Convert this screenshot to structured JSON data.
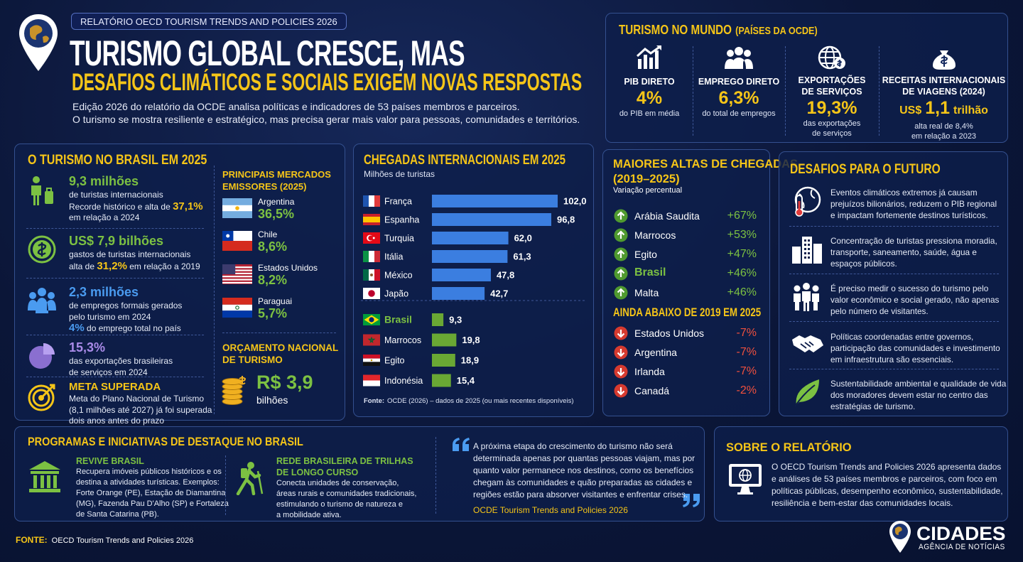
{
  "header": {
    "badge": "RELATÓRIO OECD TOURISM TRENDS AND POLICIES 2026",
    "title": "TURISMO GLOBAL CRESCE, MAS",
    "subtitle": "DESAFIOS CLIMÁTICOS E SOCIAIS EXIGEM NOVAS RESPOSTAS",
    "intro": [
      "Edição 2026 do relatório da OCDE analisa políticas e indicadores de 53 países membros e parceiros.",
      "O turismo se mostra resiliente e estratégico, mas precisa gerar mais valor para pessoas, comunidades e territórios."
    ]
  },
  "world": {
    "title": "TURISMO NO MUNDO",
    "title_note": "(PAÍSES DA OCDE)",
    "items": [
      {
        "label": [
          "PIB DIRETO"
        ],
        "value": "4%",
        "note": [
          "do PIB em média"
        ]
      },
      {
        "label": [
          "EMPREGO DIRETO"
        ],
        "value": "6,3%",
        "note": [
          "do total de empregos"
        ]
      },
      {
        "label": [
          "EXPORTAÇÕES",
          "DE SERVIÇOS"
        ],
        "value": "19,3%",
        "note": [
          "das exportações",
          "de serviços"
        ]
      },
      {
        "label": [
          "RECEITAS INTERNACIONAIS",
          "DE VIAGENS (2024)"
        ],
        "prefix": "US$",
        "value": "1,1",
        "suffix": "trilhão",
        "note": [
          "alta real de 8,4%",
          "em relação a 2023"
        ]
      }
    ]
  },
  "brazil": {
    "title": "O TURISMO NO BRASIL EM 2025",
    "items": [
      {
        "value": "9,3 milhões",
        "accent": "#7cc142",
        "em_color": "#f5c518",
        "lines": [
          [
            "de turistas internacionais"
          ],
          [
            "Recorde histórico e alta de ",
            {
              "em": "37,1%"
            }
          ],
          [
            "em relação a 2024"
          ]
        ]
      },
      {
        "value": "US$ 7,9 bilhões",
        "accent": "#7cc142",
        "em_color": "#f5c518",
        "lines": [
          [
            "gastos de turistas internacionais"
          ],
          [
            "alta de ",
            {
              "em": "31,2%"
            },
            " em relação a 2019"
          ]
        ]
      },
      {
        "value": "2,3 milhões",
        "accent": "#4a9bf0",
        "em_color": "#4a9bf0",
        "lines": [
          [
            "de empregos formais gerados"
          ],
          [
            "pelo turismo em 2024"
          ],
          [
            {
              "em": "4%"
            },
            " do emprego total no país"
          ]
        ]
      },
      {
        "value": "15,3%",
        "accent": "#a98be8",
        "lines": [
          [
            "das exportações brasileiras"
          ],
          [
            "de serviços em 2024"
          ]
        ]
      },
      {
        "value": "META SUPERADA",
        "accent": "#f5c518",
        "lines": [
          [
            "Meta do Plano Nacional de Turismo"
          ],
          [
            "(8,1 milhões até 2027) já foi superada"
          ],
          [
            "dois anos antes do prazo"
          ]
        ]
      }
    ],
    "markets": {
      "title": [
        "PRINCIPAIS MERCADOS",
        "EMISSORES (2025)"
      ],
      "items": [
        {
          "name": "Argentina",
          "share": "36,5%"
        },
        {
          "name": "Chile",
          "share": "8,6%"
        },
        {
          "name": "Estados Unidos",
          "share": "8,2%"
        },
        {
          "name": "Paraguai",
          "share": "5,7%"
        }
      ]
    },
    "budget": {
      "title": [
        "ORÇAMENTO NACIONAL",
        "DE TURISMO"
      ],
      "value": "R$ 3,9",
      "unit": "bilhões"
    }
  },
  "chart_data": {
    "type": "bar",
    "title": "CHEGADAS INTERNACIONAIS EM 2025",
    "subtitle": "Milhões de turistas",
    "categories": [
      "França",
      "Espanha",
      "Turquia",
      "Itália",
      "México",
      "Japão",
      "Brasil",
      "Marrocos",
      "Egito",
      "Indonésia"
    ],
    "values": [
      102.0,
      96.8,
      62.0,
      61.3,
      47.8,
      42.7,
      9.3,
      19.8,
      18.9,
      15.4
    ],
    "value_labels": [
      "102,0",
      "96,8",
      "62,0",
      "61,3",
      "47,8",
      "42,7",
      "9,3",
      "19,8",
      "18,9",
      "15,4"
    ],
    "colors": [
      "#3b7ee0",
      "#3b7ee0",
      "#3b7ee0",
      "#3b7ee0",
      "#3b7ee0",
      "#3b7ee0",
      "#6aa834",
      "#6aa834",
      "#6aa834",
      "#6aa834"
    ],
    "source_label": "Fonte:",
    "source": "OCDE (2026) – dados de 2025 (ou mais recentes disponíveis)"
  },
  "arrivals_change": {
    "up": {
      "title": [
        "MAIORES ALTAS DE CHEGADAS",
        "(2019–2025)"
      ],
      "subtitle": "Variação percentual",
      "items": [
        {
          "name": "Arábia Saudita",
          "change": "+67%"
        },
        {
          "name": "Marrocos",
          "change": "+53%"
        },
        {
          "name": "Egito",
          "change": "+47%"
        },
        {
          "name": "Brasil",
          "change": "+46%"
        },
        {
          "name": "Malta",
          "change": "+46%"
        }
      ]
    },
    "down": {
      "title": "AINDA ABAIXO DE 2019 EM 2025",
      "items": [
        {
          "name": "Estados Unidos",
          "change": "-7%"
        },
        {
          "name": "Argentina",
          "change": "-7%"
        },
        {
          "name": "Irlanda",
          "change": "-7%"
        },
        {
          "name": "Canadá",
          "change": "-2%"
        }
      ]
    }
  },
  "challenges": {
    "title": "DESAFIOS PARA O FUTURO",
    "items": [
      [
        "Eventos climáticos extremos já causam",
        "prejuízos bilionários, reduzem o PIB regional",
        "e impactam fortemente destinos turísticos."
      ],
      [
        "Concentração de turistas pressiona moradia,",
        "transporte, saneamento, saúde, água e",
        "espaços públicos."
      ],
      [
        "É preciso medir o sucesso do turismo pelo",
        "valor econômico e social gerado, não apenas",
        "pelo número de visitantes."
      ],
      [
        "Políticas coordenadas entre governos,",
        "participação das comunidades e investimento",
        "em infraestrutura são essenciais."
      ],
      [
        "Sustentabilidade ambiental e qualidade de vida",
        "dos moradores devem estar no centro das",
        "estratégias de turismo."
      ]
    ]
  },
  "programs": {
    "title": "PROGRAMAS E INICIATIVAS DE DESTAQUE NO BRASIL",
    "items": [
      {
        "title": [
          "REVIVE BRASIL"
        ],
        "lines": [
          "Recupera imóveis públicos históricos e os",
          "destina a atividades turísticas. Exemplos:",
          "Forte Orange (PE), Estação de Diamantina",
          "(MG), Fazenda Pau D'Alho (SP) e Fortaleza",
          "de Santa Catarina (PB)."
        ]
      },
      {
        "title": [
          "REDE BRASILEIRA DE TRILHAS",
          "DE LONGO CURSO"
        ],
        "lines": [
          "Conecta unidades de conservação,",
          "áreas rurais e comunidades tradicionais,",
          "estimulando o turismo de natureza e",
          "a mobilidade ativa."
        ]
      }
    ],
    "quote": {
      "lines": [
        "A próxima etapa do crescimento do turismo não será",
        "determinada apenas por quantas pessoas viajam, mas por",
        "quanto valor permanece nos destinos, como os benefícios",
        "chegam às comunidades e quão preparadas as cidades e",
        "regiões estão para absorver visitantes e enfrentar crises."
      ],
      "attribution": "OCDE Tourism Trends and Policies 2026"
    }
  },
  "about": {
    "title": "SOBRE O RELATÓRIO",
    "lines": [
      "O OECD Tourism Trends and Policies 2026 apresenta dados",
      "e análises de 53 países membros e parceiros, com foco em",
      "políticas públicas, desempenho econômico, sustentabilidade,",
      "resiliência e bem-estar das comunidades locais."
    ]
  },
  "footer": {
    "source_label": "FONTE:",
    "source": "OECD Tourism Trends and Policies 2026",
    "brand": "CIDADES",
    "brand_sub": "AGÊNCIA DE NOTÍCIAS"
  }
}
